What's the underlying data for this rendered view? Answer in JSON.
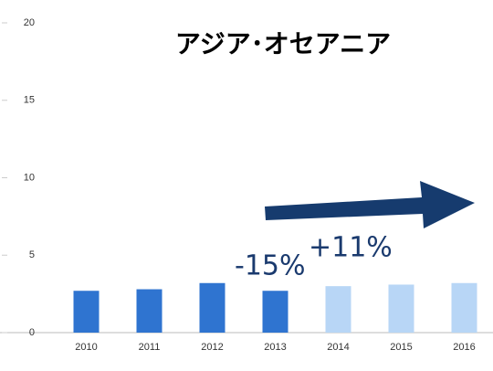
{
  "chart_data": {
    "type": "bar",
    "title": "アジア･オセアニア",
    "categories": [
      "2010",
      "2011",
      "2012",
      "2013",
      "2014",
      "2015",
      "2016"
    ],
    "values": [
      2.7,
      2.8,
      3.2,
      2.7,
      3.0,
      3.1,
      3.2
    ],
    "colors": [
      "#2f74d0",
      "#2f74d0",
      "#2f74d0",
      "#2f74d0",
      "#b8d6f6",
      "#b8d6f6",
      "#b8d6f6"
    ],
    "ylim": [
      0,
      20
    ],
    "yticks": [
      0,
      5,
      10,
      15,
      20
    ],
    "grid": false,
    "annotations": [
      "-15%",
      "+11%"
    ]
  }
}
